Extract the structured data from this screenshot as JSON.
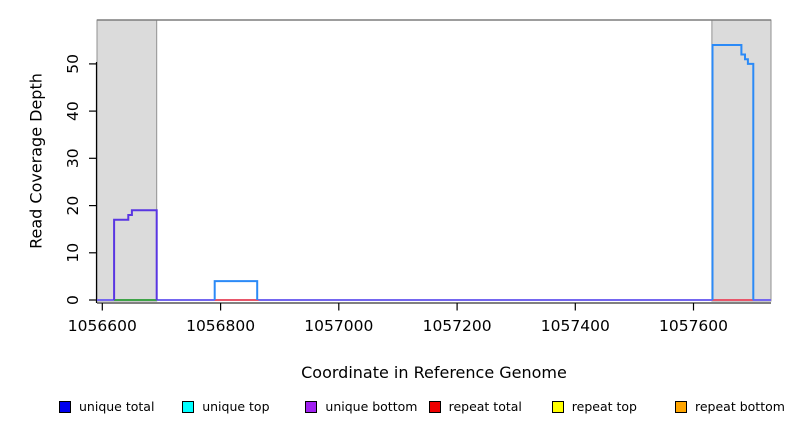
{
  "chart_data": {
    "type": "line",
    "title": "",
    "xlabel": "Coordinate in Reference Genome",
    "ylabel": "Read Coverage Depth",
    "xlim": [
      1056591,
      1057731
    ],
    "ylim": [
      0,
      59.3
    ],
    "x_ticks": [
      1056600,
      1056800,
      1057000,
      1057200,
      1057400,
      1057600
    ],
    "y_ticks": [
      0,
      10,
      20,
      30,
      40,
      50
    ],
    "grid": "off",
    "region_fill": "#DBDBDB",
    "region_stroke": "#919191",
    "frame_color": "#7D7D7D",
    "shaded_regions": [
      {
        "x1": 1056591,
        "x2": 1056692,
        "label": "left highlight region"
      },
      {
        "x1": 1057631,
        "x2": 1057731,
        "label": "right highlight region"
      }
    ],
    "series": [
      {
        "name": "zero baseline (unique bottom/total)",
        "color": "#7466F0",
        "points": [
          [
            1056591,
            0
          ],
          [
            1057731,
            0
          ]
        ]
      },
      {
        "name": "unique top zero segment left",
        "color": "#3FA348",
        "points": [
          [
            1056620,
            0
          ],
          [
            1056692,
            0
          ]
        ]
      },
      {
        "name": "repeat total zero segment middle",
        "color": "#E8566A",
        "points": [
          [
            1056790,
            0
          ],
          [
            1056864,
            0
          ]
        ]
      },
      {
        "name": "repeat total zero segment right",
        "color": "#E8566A",
        "points": [
          [
            1057632,
            0
          ],
          [
            1057700,
            0
          ]
        ]
      },
      {
        "name": "unique bottom left peak",
        "color": "#5936E2",
        "points": [
          [
            1056620,
            0
          ],
          [
            1056620,
            17
          ],
          [
            1056644,
            17
          ],
          [
            1056644,
            18
          ],
          [
            1056650,
            18
          ],
          [
            1056650,
            19
          ],
          [
            1056692,
            19
          ],
          [
            1056692,
            0
          ]
        ]
      },
      {
        "name": "unique total small peak",
        "color": "#2B8AF7",
        "points": [
          [
            1056790,
            0
          ],
          [
            1056790,
            4
          ],
          [
            1056862,
            4
          ],
          [
            1056862,
            0
          ]
        ]
      },
      {
        "name": "unique total right peak",
        "color": "#2B8AF7",
        "points": [
          [
            1057632,
            0
          ],
          [
            1057632,
            54
          ],
          [
            1057681,
            54
          ],
          [
            1057681,
            52
          ],
          [
            1057687,
            52
          ],
          [
            1057687,
            51
          ],
          [
            1057692,
            51
          ],
          [
            1057692,
            50
          ],
          [
            1057701,
            50
          ],
          [
            1057701,
            0
          ]
        ]
      }
    ]
  },
  "legend": {
    "items": [
      {
        "label": "unique total",
        "color": "#0000EE"
      },
      {
        "label": "unique top",
        "color": "#00FFFF"
      },
      {
        "label": "unique bottom",
        "color": "#A020F0"
      },
      {
        "label": "repeat total",
        "color": "#EE0000"
      },
      {
        "label": "repeat top",
        "color": "#FFFF00"
      },
      {
        "label": "repeat bottom",
        "color": "#FFA500"
      }
    ]
  }
}
